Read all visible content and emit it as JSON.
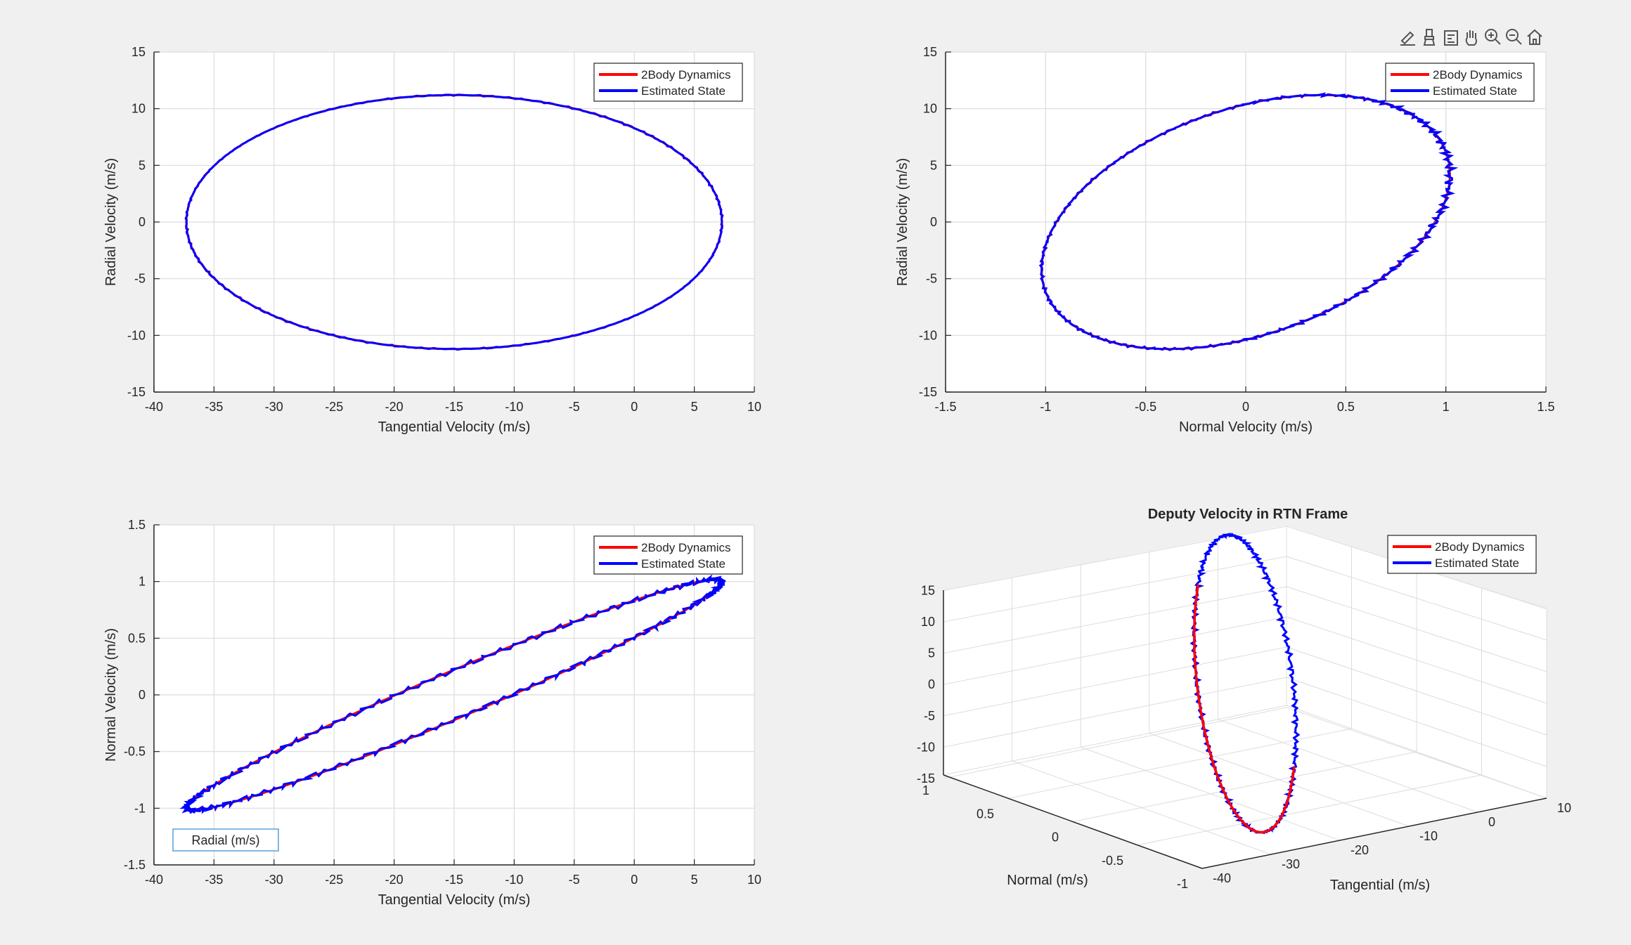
{
  "toolbar": {
    "icons": [
      "edit-plot-icon",
      "brush-icon",
      "data-tips-icon",
      "pan-icon",
      "zoom-in-icon",
      "zoom-out-icon",
      "home-icon"
    ]
  },
  "colors": {
    "figure_bg": "#f0f0f0",
    "axes_bg": "#ffffff",
    "grid": "#dcdcdc",
    "axis_line": "#262626",
    "series_true": "#ff0000",
    "series_est": "#0000ff"
  },
  "legend": [
    "2Body Dynamics",
    "Estimated State"
  ],
  "datatip": {
    "label": "Radial (m/s)"
  },
  "chart_data": [
    {
      "type": "line",
      "title": "",
      "xlabel": "Tangential Velocity (m/s)",
      "ylabel": "Radial Velocity (m/s)",
      "xlim": [
        -40,
        10
      ],
      "ylim": [
        -15,
        15
      ],
      "xticks": [
        "-40",
        "-35",
        "-30",
        "-25",
        "-20",
        "-15",
        "-10",
        "-5",
        "0",
        "5",
        "10"
      ],
      "yticks": [
        "-15",
        "-10",
        "-5",
        "0",
        "5",
        "10",
        "15"
      ],
      "grid": true,
      "legend_position": "top-right",
      "series": [
        {
          "name": "2Body Dynamics",
          "color": "#ff0000",
          "shape": "ellipse",
          "center": [
            -15,
            0
          ],
          "semi_axes": [
            22.3,
            11.2
          ]
        },
        {
          "name": "Estimated State",
          "color": "#0000ff",
          "shape": "ellipse",
          "center": [
            -15,
            0
          ],
          "semi_axes": [
            22.3,
            11.2
          ]
        }
      ]
    },
    {
      "type": "line",
      "title": "",
      "xlabel": "Normal Velocity (m/s)",
      "ylabel": "Radial Velocity (m/s)",
      "xlim": [
        -1.5,
        1.5
      ],
      "ylim": [
        -15,
        15
      ],
      "xticks": [
        "-1.5",
        "-1",
        "-0.5",
        "0",
        "0.5",
        "1",
        "1.5"
      ],
      "yticks": [
        "-15",
        "-10",
        "-5",
        "0",
        "5",
        "10",
        "15"
      ],
      "grid": true,
      "legend_position": "top-right",
      "series": [
        {
          "name": "2Body Dynamics",
          "color": "#ff0000",
          "shape": "tilted-ellipse",
          "x_amplitude": 1.02,
          "y_amplitude": 11.2,
          "phase_deg": 68
        },
        {
          "name": "Estimated State",
          "color": "#0000ff",
          "shape": "tilted-ellipse",
          "x_amplitude": 1.02,
          "y_amplitude": 11.2,
          "phase_deg": 68
        }
      ]
    },
    {
      "type": "line",
      "title": "",
      "xlabel": "Tangential Velocity (m/s)",
      "ylabel": "Normal Velocity (m/s)",
      "xlim": [
        -40,
        10
      ],
      "ylim": [
        -1.5,
        1.5
      ],
      "xticks": [
        "-40",
        "-35",
        "-30",
        "-25",
        "-20",
        "-15",
        "-10",
        "-5",
        "0",
        "5",
        "10"
      ],
      "yticks": [
        "-1.5",
        "-1",
        "-0.5",
        "0",
        "0.5",
        "1",
        "1.5"
      ],
      "grid": true,
      "legend_position": "top-right",
      "series": [
        {
          "name": "2Body Dynamics",
          "color": "#ff0000",
          "shape": "thin-tilted-ellipse",
          "x_range": [
            -37.3,
            7.3
          ],
          "y_range": [
            -1.02,
            1.02
          ]
        },
        {
          "name": "Estimated State",
          "color": "#0000ff",
          "shape": "thin-tilted-ellipse",
          "x_range": [
            -37.3,
            7.3
          ],
          "y_range": [
            -1.02,
            1.02
          ]
        }
      ]
    },
    {
      "type": "line",
      "title": "Deputy Velocity in RTN Frame",
      "xlabel": "Tangential (m/s)",
      "ylabel": "Normal (m/s)",
      "zlabel": "",
      "projection": "3d",
      "xticks": [
        "-40",
        "-30",
        "-20",
        "-10",
        "0",
        "10"
      ],
      "yticks": [
        "-1",
        "-0.5",
        "0",
        "0.5",
        "1"
      ],
      "zticks": [
        "-15",
        "-10",
        "-5",
        "0",
        "5",
        "10",
        "15"
      ],
      "grid": true,
      "legend_position": "top-right",
      "series": [
        {
          "name": "2Body Dynamics",
          "color": "#ff0000"
        },
        {
          "name": "Estimated State",
          "color": "#0000ff"
        }
      ]
    }
  ]
}
